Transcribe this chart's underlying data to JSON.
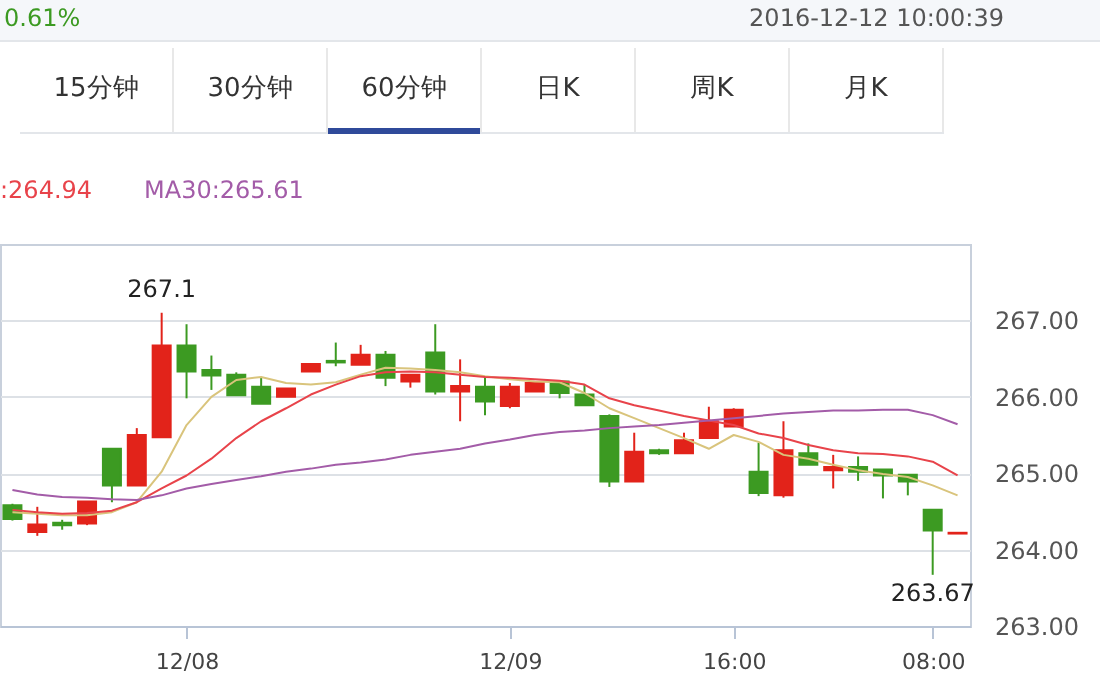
{
  "chart_data": {
    "type": "candlestick",
    "annotations": [
      "0.61%",
      "2016-12-12 10:00:39",
      "15分钟",
      "30分钟",
      "60分钟",
      "日K",
      "周K",
      "月K",
      {
        "text": "267.1",
        "y": 267.1
      },
      {
        "text": "263.67",
        "y": 263.67
      }
    ],
    "categories": [
      null,
      null,
      null,
      null,
      null,
      null,
      null,
      "12/08",
      null,
      null,
      null,
      null,
      null,
      null,
      null,
      null,
      null,
      null,
      null,
      null,
      "12/09",
      null,
      null,
      null,
      null,
      null,
      null,
      null,
      null,
      "16:00",
      null,
      null,
      null,
      null,
      null,
      null,
      null,
      "08:00",
      null
    ],
    "ylim": [
      263,
      268
    ],
    "yticks": [
      {
        "value": 263,
        "label": "263.00"
      },
      {
        "value": 264,
        "label": "264.00"
      },
      {
        "value": 265,
        "label": "265.00"
      },
      {
        "value": 266,
        "label": "266.00"
      },
      {
        "value": 267,
        "label": "267.00"
      }
    ],
    "grid": "y",
    "legend": "top left",
    "series": [
      {
        "type": "candlestick",
        "colors": [
          "#3c9a22",
          "#e2231a",
          "#3c9a22",
          "#e2231a",
          "#3c9a22",
          "#e2231a",
          "#e2231a",
          "#3c9a22",
          "#3c9a22",
          "#3c9a22",
          "#3c9a22",
          "#e2231a",
          "#e2231a",
          "#3c9a22",
          "#e2231a",
          "#3c9a22",
          "#e2231a",
          "#3c9a22",
          "#e2231a",
          "#3c9a22",
          "#e2231a",
          "#e2231a",
          "#3c9a22",
          "#3c9a22",
          "#3c9a22",
          "#e2231a",
          "#3c9a22",
          "#e2231a",
          "#e2231a",
          "#e2231a",
          "#3c9a22",
          "#e2231a",
          "#3c9a22",
          "#e2231a",
          "#3c9a22",
          "#3c9a22",
          "#3c9a22",
          "#3c9a22",
          "#e2231a"
        ],
        "ohlc": [
          [
            264.58,
            264.6,
            264.38,
            264.4
          ],
          [
            264.23,
            264.56,
            264.18,
            264.33
          ],
          [
            264.35,
            264.39,
            264.26,
            264.32
          ],
          [
            264.34,
            264.63,
            264.32,
            264.63
          ],
          [
            265.32,
            265.32,
            264.62,
            264.84
          ],
          [
            264.84,
            265.59,
            264.84,
            265.5
          ],
          [
            265.47,
            267.1,
            265.47,
            266.67
          ],
          [
            266.67,
            266.95,
            265.98,
            266.33
          ],
          [
            266.35,
            266.54,
            266.09,
            266.28
          ],
          [
            266.29,
            266.32,
            266.02,
            266.02
          ],
          [
            266.13,
            266.25,
            265.91,
            265.91
          ],
          [
            266.0,
            266.11,
            266.0,
            266.11
          ],
          [
            266.33,
            266.43,
            266.33,
            266.43
          ],
          [
            266.47,
            266.71,
            266.4,
            266.45
          ],
          [
            266.42,
            266.68,
            266.42,
            266.55
          ],
          [
            266.55,
            266.6,
            266.14,
            266.25
          ],
          [
            266.2,
            266.29,
            266.12,
            266.29
          ],
          [
            266.58,
            266.95,
            266.03,
            266.07
          ],
          [
            266.07,
            266.49,
            265.68,
            266.14
          ],
          [
            266.13,
            266.27,
            265.76,
            265.94
          ],
          [
            265.88,
            266.18,
            265.85,
            266.13
          ],
          [
            266.07,
            266.2,
            266.07,
            266.18
          ],
          [
            266.2,
            266.22,
            265.98,
            266.05
          ],
          [
            266.03,
            266.16,
            265.89,
            265.89
          ],
          [
            265.75,
            265.77,
            264.82,
            264.89
          ],
          [
            264.89,
            265.53,
            264.89,
            265.28
          ],
          [
            265.3,
            265.32,
            265.24,
            265.26
          ],
          [
            265.26,
            265.53,
            265.26,
            265.43
          ],
          [
            265.46,
            265.87,
            265.46,
            265.68
          ],
          [
            265.61,
            265.85,
            265.61,
            265.83
          ],
          [
            265.02,
            265.4,
            264.7,
            264.74
          ],
          [
            264.71,
            265.68,
            264.68,
            265.3
          ],
          [
            265.26,
            265.39,
            265.11,
            265.11
          ],
          [
            265.04,
            265.24,
            264.8,
            265.08
          ],
          [
            265.08,
            265.22,
            264.9,
            265.02
          ],
          [
            265.05,
            265.05,
            264.67,
            264.97
          ],
          [
            264.98,
            264.98,
            264.71,
            264.89
          ],
          [
            264.52,
            264.52,
            263.67,
            264.25
          ],
          [
            264.21,
            264.22,
            264.21,
            264.22
          ]
        ]
      },
      {
        "type": "line",
        "color": "#d9c47c",
        "values": [
          264.49,
          264.47,
          264.45,
          264.45,
          264.49,
          264.62,
          265.02,
          265.63,
          266.0,
          266.22,
          266.26,
          266.18,
          266.16,
          266.19,
          266.29,
          266.38,
          266.37,
          266.35,
          266.32,
          266.27,
          266.23,
          266.2,
          266.19,
          266.05,
          265.85,
          265.72,
          265.59,
          265.46,
          265.32,
          265.5,
          265.41,
          265.24,
          265.19,
          265.11,
          265.04,
          264.99,
          264.95,
          264.84,
          264.71
        ]
      },
      {
        "type": "line",
        "name": ":264.94",
        "color": "#e8434a",
        "values": [
          264.52,
          264.49,
          264.47,
          264.48,
          264.51,
          264.62,
          264.8,
          264.97,
          265.19,
          265.46,
          265.68,
          265.85,
          266.03,
          266.16,
          266.27,
          266.32,
          266.33,
          266.32,
          266.29,
          266.26,
          266.25,
          266.23,
          266.21,
          266.16,
          265.98,
          265.89,
          265.82,
          265.75,
          265.69,
          265.63,
          265.52,
          265.46,
          265.37,
          265.3,
          265.26,
          265.25,
          265.22,
          265.15,
          264.97
        ]
      },
      {
        "type": "line",
        "name": "MA30:265.61",
        "color": "#a35ca8",
        "values": [
          264.78,
          264.72,
          264.69,
          264.68,
          264.66,
          264.65,
          264.71,
          264.8,
          264.86,
          264.91,
          264.96,
          265.02,
          265.06,
          265.11,
          265.14,
          265.18,
          265.24,
          265.28,
          265.32,
          265.39,
          265.44,
          265.5,
          265.54,
          265.56,
          265.59,
          265.61,
          265.63,
          265.66,
          265.69,
          265.72,
          265.75,
          265.78,
          265.8,
          265.82,
          265.82,
          265.83,
          265.83,
          265.76,
          265.64
        ]
      }
    ]
  }
}
